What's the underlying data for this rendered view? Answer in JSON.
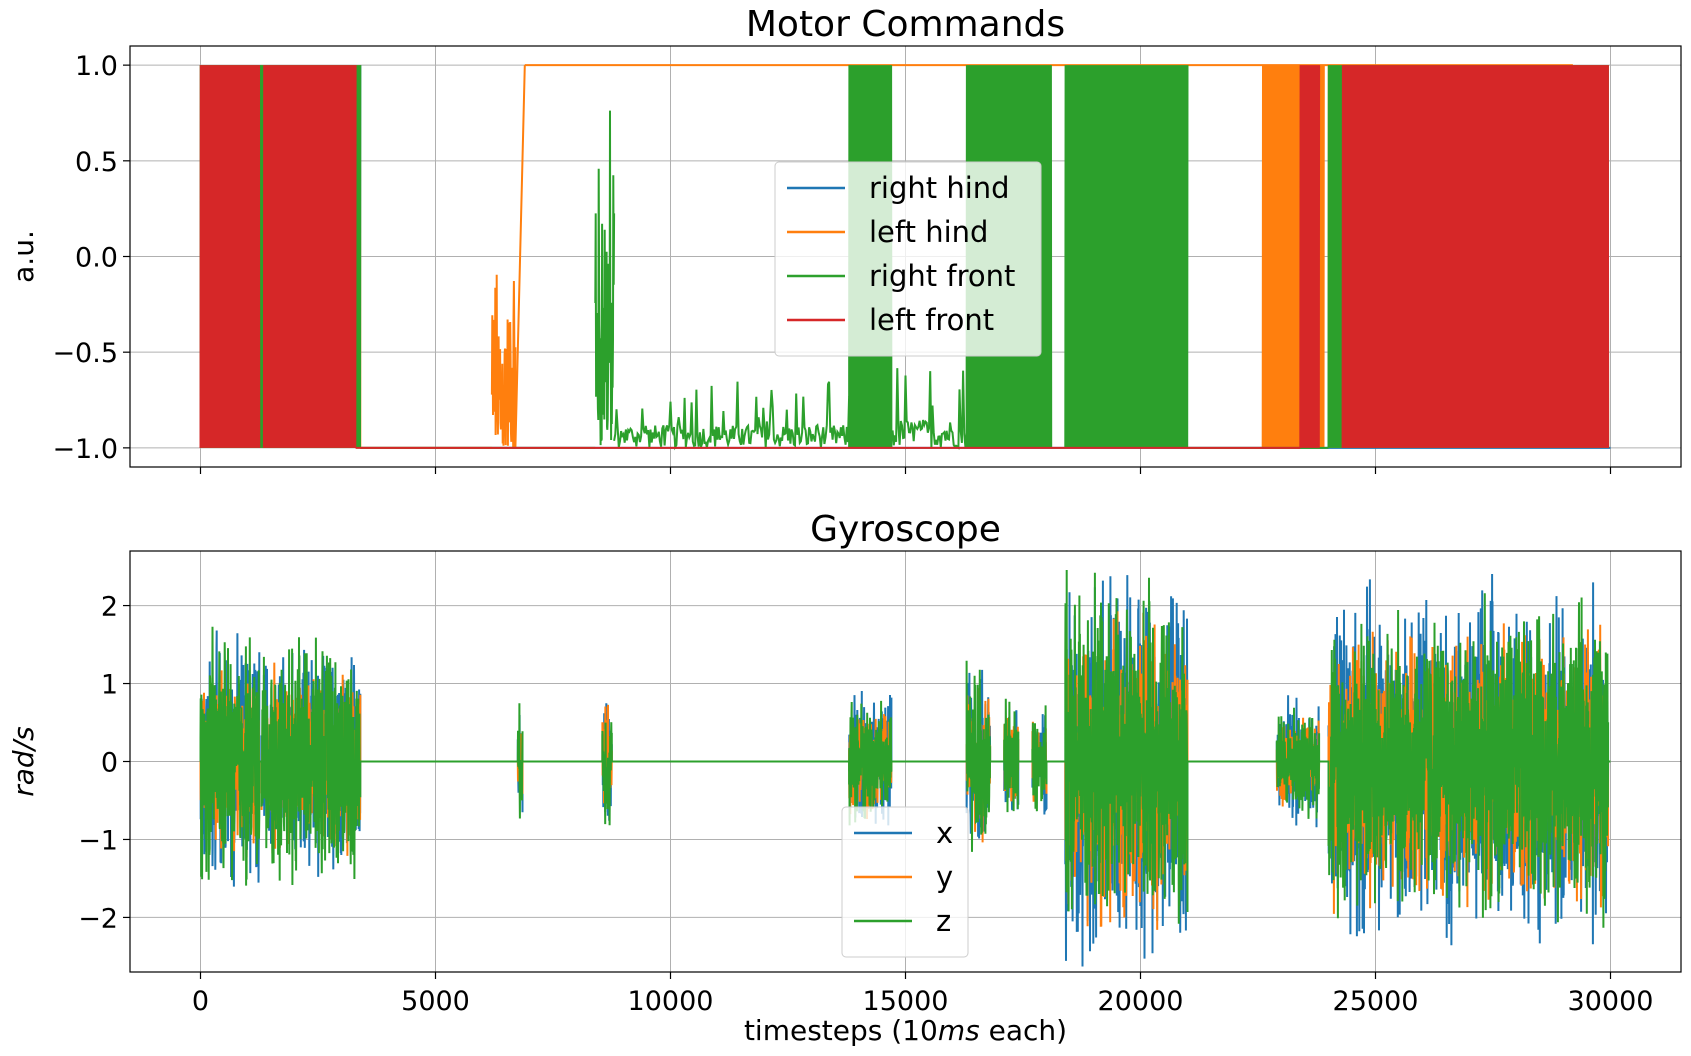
{
  "chart_data": [
    {
      "type": "line",
      "title": "Motor Commands",
      "ylabel": "a.u.",
      "xlabel": "",
      "xlim": [
        -1500,
        31500
      ],
      "ylim": [
        -1.1,
        1.1
      ],
      "xticks": [
        0,
        5000,
        10000,
        15000,
        20000,
        25000,
        30000
      ],
      "yticks": [
        1.0,
        0.5,
        0.0,
        -0.5,
        -1.0
      ],
      "ytick_labels": [
        "1.0",
        "0.5",
        "0.0",
        "−0.5",
        "−1.0"
      ],
      "grid": true,
      "legend_position": "center",
      "colors": {
        "right hind": "#1f77b4",
        "left hind": "#ff7f0e",
        "right front": "#2ca02c",
        "left front": "#d62728"
      },
      "series": [
        {
          "name": "right hind",
          "segments": [
            {
              "x": [
                0,
                3400
              ],
              "mode": "toggle",
              "low": -1,
              "high": 1
            },
            {
              "x": [
                3400,
                30000
              ],
              "mode": "const",
              "y": -1
            }
          ]
        },
        {
          "name": "left hind",
          "segments": [
            {
              "x": [
                0,
                1200
              ],
              "mode": "toggle",
              "low": -1,
              "high": 1
            },
            {
              "x": [
                1300,
                3400
              ],
              "mode": "toggle",
              "low": -1,
              "high": 1
            },
            {
              "x": [
                3400,
                6200
              ],
              "mode": "const",
              "y": -1
            },
            {
              "x": [
                6200,
                6700
              ],
              "mode": "burst",
              "low": -1,
              "high": 0.1
            },
            {
              "x": [
                6700,
                6900
              ],
              "mode": "ramp",
              "from": -1,
              "to": 1
            },
            {
              "x": [
                6900,
                29200
              ],
              "mode": "const",
              "y": 1
            },
            {
              "x": [
                22600,
                23900
              ],
              "mode": "toggle",
              "low": -1,
              "high": 1
            },
            {
              "x": [
                24000,
                29950
              ],
              "mode": "toggle",
              "low": -1,
              "high": 1
            }
          ]
        },
        {
          "name": "right front",
          "segments": [
            {
              "x": [
                0,
                3400
              ],
              "mode": "toggle",
              "low": -1,
              "high": 1
            },
            {
              "x": [
                3400,
                8400
              ],
              "mode": "const",
              "y": -1
            },
            {
              "x": [
                8400,
                8800
              ],
              "mode": "burst",
              "low": -1,
              "high": 1
            },
            {
              "x": [
                8800,
                13800
              ],
              "mode": "noise",
              "base": -1,
              "amp": 0.12
            },
            {
              "x": [
                13800,
                14700
              ],
              "mode": "toggle",
              "low": -1,
              "high": 1
            },
            {
              "x": [
                14700,
                16300
              ],
              "mode": "noise",
              "base": -1,
              "amp": 0.15
            },
            {
              "x": [
                16300,
                18100
              ],
              "mode": "toggle",
              "low": -1,
              "high": 1
            },
            {
              "x": [
                18400,
                21000
              ],
              "mode": "toggle",
              "low": -1,
              "high": 1
            },
            {
              "x": [
                21000,
                24000
              ],
              "mode": "const",
              "y": -1
            },
            {
              "x": [
                24000,
                29950
              ],
              "mode": "toggle",
              "low": -1,
              "high": 1
            }
          ]
        },
        {
          "name": "left front",
          "segments": [
            {
              "x": [
                0,
                1250
              ],
              "mode": "toggle",
              "low": -1,
              "high": 1
            },
            {
              "x": [
                1350,
                3300
              ],
              "mode": "toggle",
              "low": -1,
              "high": 1
            },
            {
              "x": [
                3300,
                23400
              ],
              "mode": "const",
              "y": -1
            },
            {
              "x": [
                23400,
                23800
              ],
              "mode": "toggle",
              "low": -1,
              "high": 1
            },
            {
              "x": [
                24300,
                29950
              ],
              "mode": "toggle",
              "low": -1,
              "high": 1
            }
          ]
        }
      ]
    },
    {
      "type": "line",
      "title": "Gyroscope",
      "ylabel": "rad/s",
      "xlabel": "timesteps (10ms each)",
      "xlim": [
        -1500,
        31500
      ],
      "ylim": [
        -2.7,
        2.7
      ],
      "xticks": [
        0,
        5000,
        10000,
        15000,
        20000,
        25000,
        30000
      ],
      "yticks": [
        2,
        1,
        0,
        -1,
        -2
      ],
      "ytick_labels": [
        "2",
        "1",
        "0",
        "−1",
        "−2"
      ],
      "grid": true,
      "legend_position": "lower center",
      "colors": {
        "x": "#1f77b4",
        "y": "#ff7f0e",
        "z": "#2ca02c"
      },
      "active_intervals": [
        {
          "x": [
            0,
            1250
          ],
          "amp": 1.9
        },
        {
          "x": [
            1300,
            3400
          ],
          "amp": 1.7
        },
        {
          "x": [
            6750,
            6850
          ],
          "amp": 0.8
        },
        {
          "x": [
            8550,
            8750
          ],
          "amp": 1.0
        },
        {
          "x": [
            13800,
            14700
          ],
          "amp": 1.0
        },
        {
          "x": [
            16300,
            16800
          ],
          "amp": 1.4
        },
        {
          "x": [
            17100,
            17400
          ],
          "amp": 1.0
        },
        {
          "x": [
            17700,
            18000
          ],
          "amp": 0.8
        },
        {
          "x": [
            18400,
            21000
          ],
          "amp": 2.5
        },
        {
          "x": [
            22900,
            23800
          ],
          "amp": 0.8
        },
        {
          "x": [
            24000,
            27000
          ],
          "amp": 2.2
        },
        {
          "x": [
            27000,
            29950
          ],
          "amp": 2.2
        }
      ],
      "series": [
        {
          "name": "x",
          "peak": 2.45
        },
        {
          "name": "y",
          "peak": 1.9
        },
        {
          "name": "z",
          "peak": 2.5
        }
      ]
    }
  ],
  "x_axis_label_parts": {
    "prefix": "timesteps (10",
    "italic": "ms",
    "suffix": " each)"
  }
}
